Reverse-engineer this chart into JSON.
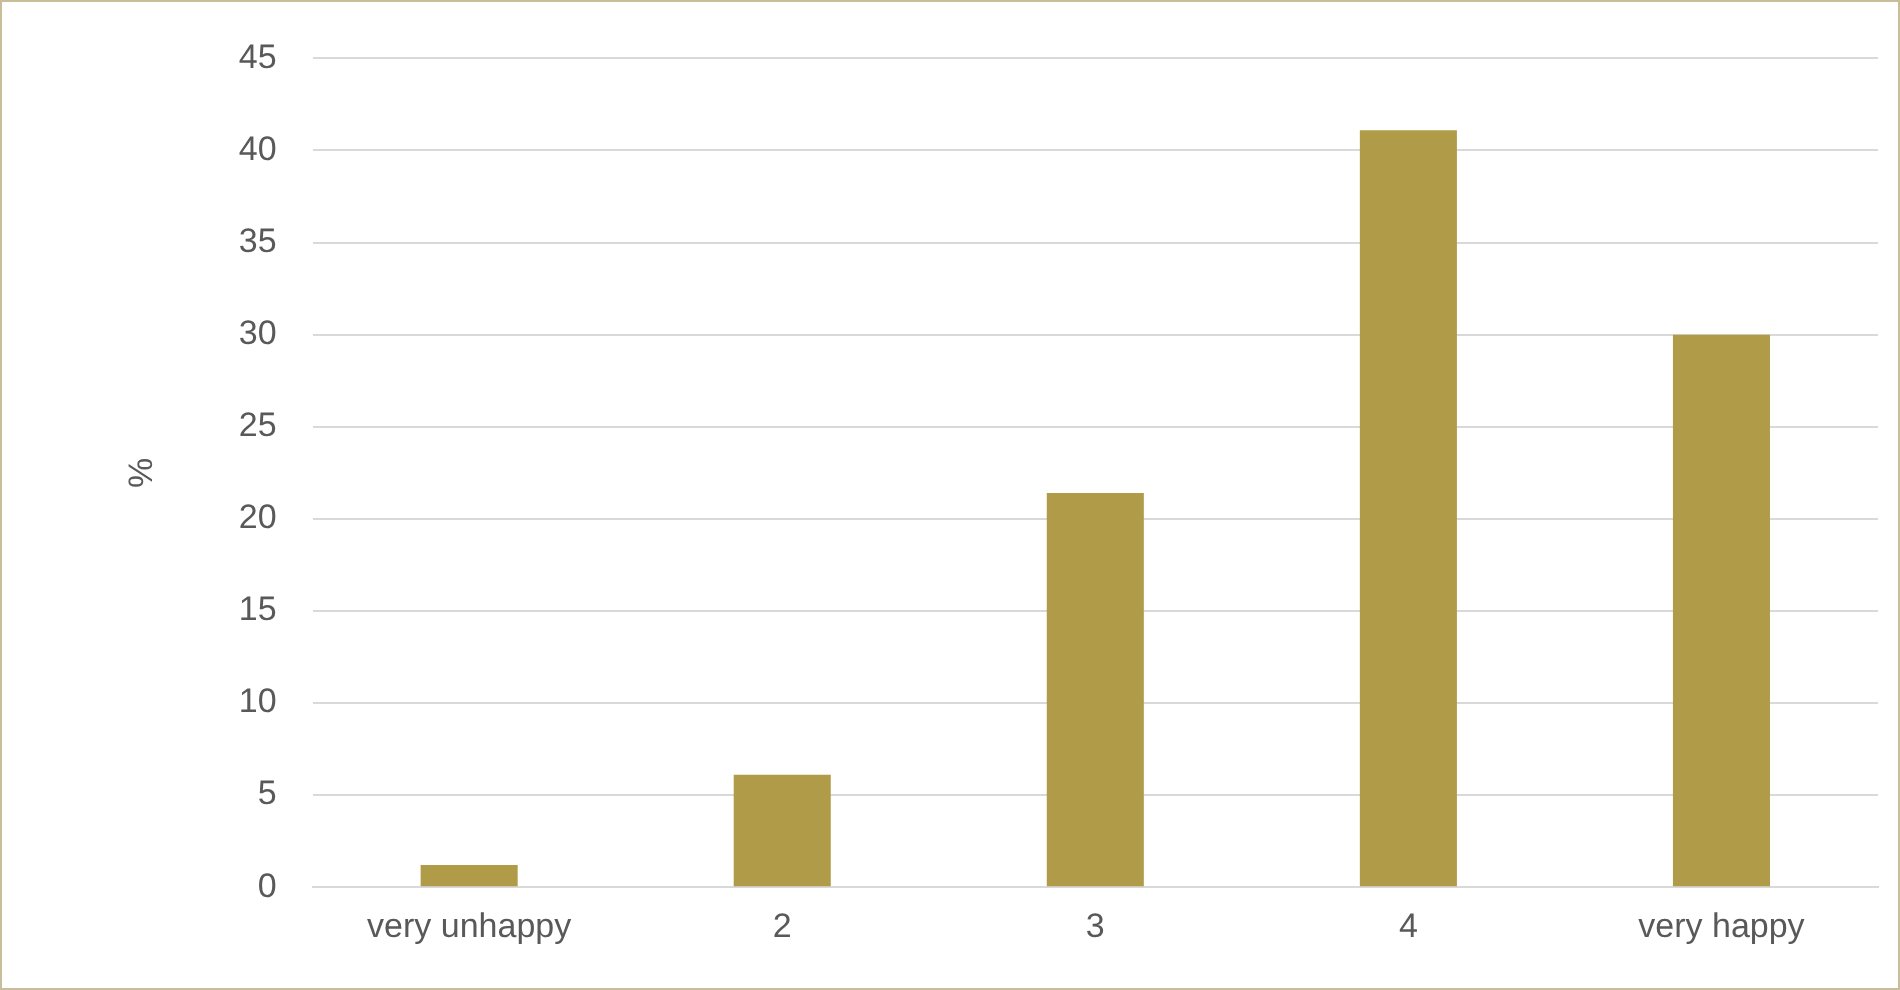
{
  "chart_data": {
    "type": "bar",
    "ylabel": "%",
    "categories": [
      "very unhappy",
      "2",
      "3",
      "4",
      "very happy"
    ],
    "values": [
      1.2,
      6.1,
      21.4,
      41.1,
      30
    ],
    "color": "#b09c48",
    "ylim": [
      0,
      45
    ],
    "yticks": [
      0,
      5,
      10,
      15,
      20,
      25,
      30,
      35,
      40,
      45
    ],
    "grid": "y"
  }
}
